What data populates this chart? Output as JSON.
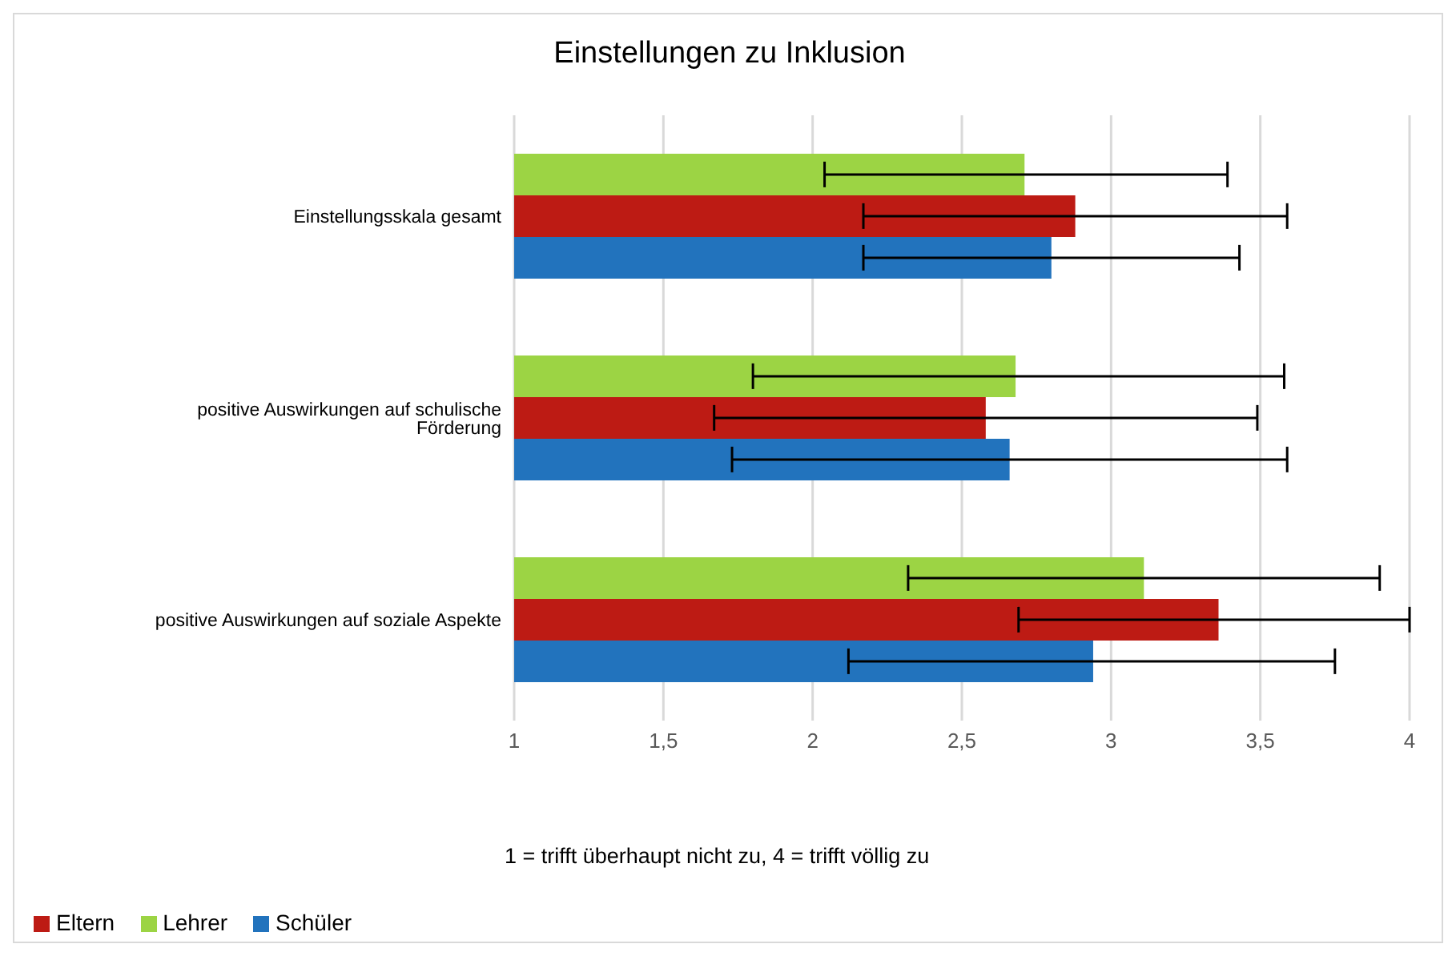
{
  "chart_data": {
    "type": "bar",
    "orientation": "horizontal",
    "title": "Einstellungen zu Inklusion",
    "xlabel": "1 = trifft überhaupt nicht zu, 4 = trifft völlig zu",
    "categories": [
      "Einstellungsskala gesamt",
      "positive Auswirkungen auf schulische Förderung",
      "positive Auswirkungen auf soziale Aspekte"
    ],
    "series": [
      {
        "name": "Lehrer",
        "color": "#9cd444",
        "values": [
          2.71,
          2.68,
          3.11
        ],
        "errors": [
          [
            2.04,
            3.39
          ],
          [
            1.8,
            3.58
          ],
          [
            2.32,
            3.9
          ]
        ]
      },
      {
        "name": "Eltern",
        "color": "#bd1b14",
        "values": [
          2.88,
          2.58,
          3.36
        ],
        "errors": [
          [
            2.17,
            3.59
          ],
          [
            1.67,
            3.49
          ],
          [
            2.69,
            4
          ]
        ]
      },
      {
        "name": "Schüler",
        "color": "#2273bd",
        "values": [
          2.8,
          2.66,
          2.94
        ],
        "errors": [
          [
            2.17,
            3.43
          ],
          [
            1.73,
            3.59
          ],
          [
            2.12,
            3.75
          ]
        ]
      }
    ],
    "xlim": [
      1,
      4
    ],
    "xticks": [
      1,
      {
        "value": 1.5,
        "label": "1,5"
      },
      2,
      {
        "value": 2.5,
        "label": "2,5"
      },
      3,
      {
        "value": 3.5,
        "label": "3,5"
      },
      4
    ],
    "grid": "x",
    "legend": "bottom left"
  }
}
